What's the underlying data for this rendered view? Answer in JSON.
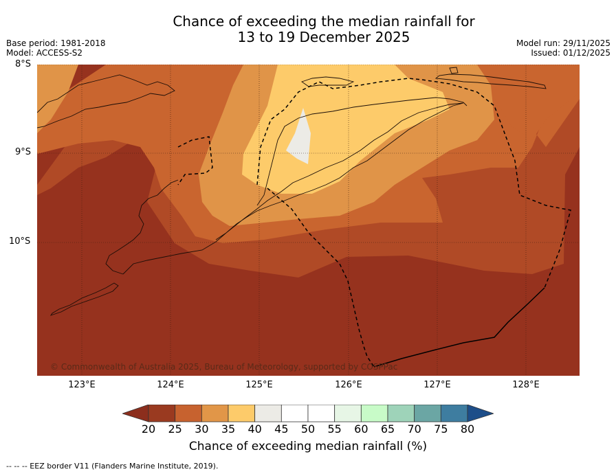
{
  "title": {
    "line1": "Chance of exceeding the median rainfall for",
    "line2": "13 to 19 December 2025"
  },
  "meta": {
    "base_period": "Base period: 1981-2018",
    "model": "Model: ACCESS-S2",
    "model_run": "Model run: 29/11/2025",
    "issued": "Issued: 01/12/2025"
  },
  "axes": {
    "lat_labels": [
      "8°S",
      "9°S",
      "10°S"
    ],
    "lon_labels": [
      "123°E",
      "124°E",
      "125°E",
      "126°E",
      "127°E",
      "128°E"
    ]
  },
  "copyright": "© Commonwealth of Australia 2025, Bureau of Meteorology, supported by COSPPac",
  "colorbar": {
    "label": "Chance of exceeding median rainfall (%)",
    "ticks": [
      "20",
      "25",
      "30",
      "35",
      "40",
      "45",
      "50",
      "55",
      "60",
      "65",
      "70",
      "75",
      "80"
    ],
    "colors": [
      "#9a3a20",
      "#c7622f",
      "#e19648",
      "#fdcb6a",
      "#ecebe6",
      "#ffffff",
      "#ffffff",
      "#e7f6e6",
      "#c8fbc8",
      "#9ed3b9",
      "#6ba6a4",
      "#3e7da0",
      "#1d4e89"
    ],
    "low_color": "#8c2e1d",
    "high_color": "#1d4e89"
  },
  "legend": "--  --  -- EEZ border V11 (Flanders Marine Institute, 2019).",
  "map_colors": {
    "c20": "#96321e",
    "c25": "#b04a26",
    "c30": "#c9652f",
    "c35": "#e09448",
    "c40": "#fdcb6a",
    "c45": "#ecebe6"
  }
}
